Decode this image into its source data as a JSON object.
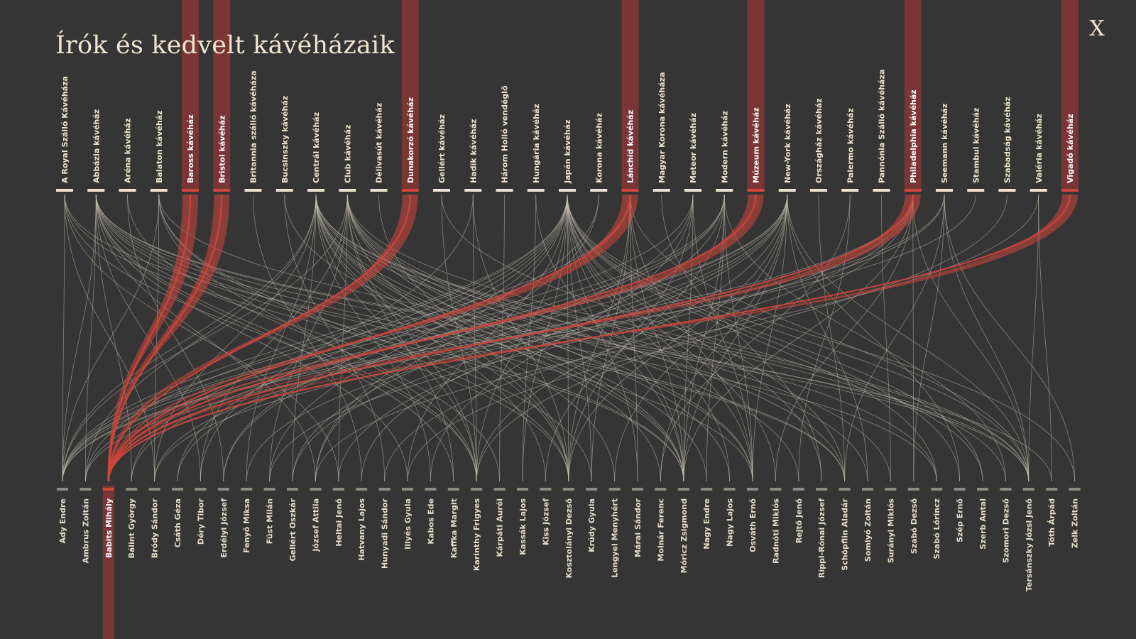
{
  "title": "Írók és kedvelt kávéházaik",
  "close_label": "X",
  "colors": {
    "background": "#353535",
    "text": "#efe4cf",
    "link": "#c9c2b3",
    "highlight": "#d2453b",
    "highlight_band": "#7a3535",
    "writer_marker": "#8f8b80"
  },
  "icons": {
    "close": "close-icon"
  },
  "selected_writer": "Babits Mihály",
  "cafes": [
    "A Royal Szálló Kávéháza",
    "Abbázia kávéház",
    "Aréna kávéház",
    "Balaton kávéház",
    "Baross kávéház",
    "Bristol kávéház",
    "Britannia szálló kávéháza",
    "Bucsinszky kávéház",
    "Centrál kávéház",
    "Club kávéház",
    "Délivasút kávéház",
    "Dunakorzó kávéház",
    "Gellért kávéház",
    "Hadik kávéház",
    "Három Holló vendéglő",
    "Hungária kávéház",
    "Japán kávéház",
    "Korona kávéház",
    "Lánchíd kávéház",
    "Magyar Korona kávéháza",
    "Meteor kávéház",
    "Modern kávéház",
    "Múzeum kávéház",
    "New-York kávéház",
    "Országház kávéház",
    "Palermo kávéház",
    "Pannónia Szálló kávéháza",
    "Philadelphia kávéház",
    "Seemann kávéház",
    "Stambul kávéház",
    "Szabadság kávéház",
    "Valéria kávéház",
    "Vigadó kávéház"
  ],
  "writers": [
    "Ady Endre",
    "Ambrus Zoltán",
    "Babits Mihály",
    "Bálint György",
    "Bródy Sándor",
    "Csáth Géza",
    "Déry Tibor",
    "Erdélyi József",
    "Fenyő Miksa",
    "Füst Milán",
    "Gellért Oszkár",
    "József Attila",
    "Heltai Jenő",
    "Hatvany Lajos",
    "Hunyadi Sándor",
    "Illyés Gyula",
    "Kabos Ede",
    "Kaffka Margit",
    "Karinthy Frigyes",
    "Kárpáti Aurél",
    "Kassák Lajos",
    "Kiss József",
    "Kosztolányi Dezső",
    "Krúdy Gyula",
    "Lengyel Menyhért",
    "Márai Sándor",
    "Molnár Ferenc",
    "Móricz Zsigmond",
    "Nagy Endre",
    "Nagy Lajos",
    "Osváth Ernő",
    "Radnóti Miklós",
    "Rejtő Jenő",
    "Rippl-Rónai József",
    "Schöpflin Aladár",
    "Somlyó Zoltán",
    "Surányi Miklós",
    "Szabó Dezső",
    "Szabó Lőrincz",
    "Szép Ernő",
    "Szerb Antal",
    "Szomori Dezső",
    "Tersánszky Józsi Jenő",
    "Tóth Árpád",
    "Zelk Zoltán"
  ],
  "links": [
    [
      "Ady Endre",
      "A Royal Szálló Kávéháza"
    ],
    [
      "Ady Endre",
      "Abbázia kávéház"
    ],
    [
      "Ady Endre",
      "Balaton kávéház"
    ],
    [
      "Ady Endre",
      "Centrál kávéház"
    ],
    [
      "Ady Endre",
      "Club kávéház"
    ],
    [
      "Ady Endre",
      "Japán kávéház"
    ],
    [
      "Ady Endre",
      "Lánchíd kávéház"
    ],
    [
      "Ady Endre",
      "Meteor kávéház"
    ],
    [
      "Ady Endre",
      "Modern kávéház"
    ],
    [
      "Ady Endre",
      "New-York kávéház"
    ],
    [
      "Ady Endre",
      "Philadelphia kávéház"
    ],
    [
      "Ady Endre",
      "Seemann kávéház"
    ],
    [
      "Ambrus Zoltán",
      "Abbázia kávéház"
    ],
    [
      "Ambrus Zoltán",
      "Centrál kávéház"
    ],
    [
      "Ambrus Zoltán",
      "New-York kávéház"
    ],
    [
      "Ambrus Zoltán",
      "Japán kávéház"
    ],
    [
      "Ambrus Zoltán",
      "Stambul kávéház"
    ],
    [
      "Babits Mihály",
      "Baross kávéház"
    ],
    [
      "Babits Mihály",
      "Bristol kávéház"
    ],
    [
      "Babits Mihály",
      "Dunakorzó kávéház"
    ],
    [
      "Babits Mihály",
      "Lánchíd kávéház"
    ],
    [
      "Babits Mihály",
      "Múzeum kávéház"
    ],
    [
      "Babits Mihály",
      "Philadelphia kávéház"
    ],
    [
      "Babits Mihály",
      "Vigadó kávéház"
    ],
    [
      "Bálint György",
      "Abbázia kávéház"
    ],
    [
      "Bálint György",
      "Japán kávéház"
    ],
    [
      "Bálint György",
      "Modern kávéház"
    ],
    [
      "Bródy Sándor",
      "A Royal Szálló Kávéháza"
    ],
    [
      "Bródy Sándor",
      "Balaton kávéház"
    ],
    [
      "Bródy Sándor",
      "Centrál kávéház"
    ],
    [
      "Bródy Sándor",
      "New-York kávéház"
    ],
    [
      "Bródy Sándor",
      "Seemann kávéház"
    ],
    [
      "Csáth Géza",
      "Japán kávéház"
    ],
    [
      "Csáth Géza",
      "Modern kávéház"
    ],
    [
      "Déry Tibor",
      "Abbázia kávéház"
    ],
    [
      "Déry Tibor",
      "Club kávéház"
    ],
    [
      "Déry Tibor",
      "Hadik kávéház"
    ],
    [
      "Erdélyi József",
      "Aréna kávéház"
    ],
    [
      "Erdélyi József",
      "Japán kávéház"
    ],
    [
      "Erdélyi József",
      "Korona kávéház"
    ],
    [
      "Fenyő Miksa",
      "Centrál kávéház"
    ],
    [
      "Fenyő Miksa",
      "New-York kávéház"
    ],
    [
      "Füst Milán",
      "Club kávéház"
    ],
    [
      "Füst Milán",
      "Japán kávéház"
    ],
    [
      "Füst Milán",
      "Philadelphia kávéház"
    ],
    [
      "Gellért Oszkár",
      "Centrál kávéház"
    ],
    [
      "Gellért Oszkár",
      "New-York kávéház"
    ],
    [
      "Gellért Oszkár",
      "Meteor kávéház"
    ],
    [
      "József Attila",
      "Abbázia kávéház"
    ],
    [
      "József Attila",
      "Japán kávéház"
    ],
    [
      "József Attila",
      "Korona kávéház"
    ],
    [
      "József Attila",
      "Valéria kávéház"
    ],
    [
      "Heltai Jenő",
      "A Royal Szálló Kávéháza"
    ],
    [
      "Heltai Jenő",
      "New-York kávéház"
    ],
    [
      "Heltai Jenő",
      "Club kávéház"
    ],
    [
      "Hatvany Lajos",
      "Britannia szálló kávéháza"
    ],
    [
      "Hatvany Lajos",
      "Modern kávéház"
    ],
    [
      "Hunyadi Sándor",
      "Bucsinszky kávéház"
    ],
    [
      "Hunyadi Sándor",
      "Philadelphia kávéház"
    ],
    [
      "Illyés Gyula",
      "Japán kávéház"
    ],
    [
      "Illyés Gyula",
      "Abbázia kávéház"
    ],
    [
      "Illyés Gyula",
      "Szabadság kávéház"
    ],
    [
      "Kabos Ede",
      "Centrál kávéház"
    ],
    [
      "Kabos Ede",
      "Meteor kávéház"
    ],
    [
      "Kaffka Margit",
      "Club kávéház"
    ],
    [
      "Kaffka Margit",
      "Abbázia kávéház"
    ],
    [
      "Karinthy Frigyes",
      "A Royal Szálló Kávéháza"
    ],
    [
      "Karinthy Frigyes",
      "Abbázia kávéház"
    ],
    [
      "Karinthy Frigyes",
      "Balaton kávéház"
    ],
    [
      "Karinthy Frigyes",
      "Centrál kávéház"
    ],
    [
      "Karinthy Frigyes",
      "Club kávéház"
    ],
    [
      "Karinthy Frigyes",
      "Gellért kávéház"
    ],
    [
      "Karinthy Frigyes",
      "Hadik kávéház"
    ],
    [
      "Karinthy Frigyes",
      "Japán kávéház"
    ],
    [
      "Karinthy Frigyes",
      "New-York kávéház"
    ],
    [
      "Karinthy Frigyes",
      "Philadelphia kávéház"
    ],
    [
      "Kárpáti Aurél",
      "Aréna kávéház"
    ],
    [
      "Kárpáti Aurél",
      "Három Holló vendéglő"
    ],
    [
      "Kassák Lajos",
      "Japán kávéház"
    ],
    [
      "Kassák Lajos",
      "Hungária kávéház"
    ],
    [
      "Kiss József",
      "Centrál kávéház"
    ],
    [
      "Kiss József",
      "Modern kávéház"
    ],
    [
      "Kosztolányi Dezső",
      "Abbázia kávéház"
    ],
    [
      "Kosztolányi Dezső",
      "Balaton kávéház"
    ],
    [
      "Kosztolányi Dezső",
      "Centrál kávéház"
    ],
    [
      "Kosztolányi Dezső",
      "Club kávéház"
    ],
    [
      "Kosztolányi Dezső",
      "Délivasút kávéház"
    ],
    [
      "Kosztolányi Dezső",
      "Hadik kávéház"
    ],
    [
      "Kosztolányi Dezső",
      "Japán kávéház"
    ],
    [
      "Kosztolányi Dezső",
      "Lánchíd kávéház"
    ],
    [
      "Kosztolányi Dezső",
      "Meteor kávéház"
    ],
    [
      "Kosztolányi Dezső",
      "New-York kávéház"
    ],
    [
      "Krúdy Gyula",
      "Balaton kávéház"
    ],
    [
      "Krúdy Gyula",
      "Japán kávéház"
    ],
    [
      "Krúdy Gyula",
      "Lánchíd kávéház"
    ],
    [
      "Lengyel Menyhért",
      "Centrál kávéház"
    ],
    [
      "Lengyel Menyhért",
      "New-York kávéház"
    ],
    [
      "Márai Sándor",
      "Lánchíd kávéház"
    ],
    [
      "Márai Sándor",
      "Japán kávéház"
    ],
    [
      "Molnár Ferenc",
      "Centrál kávéház"
    ],
    [
      "Molnár Ferenc",
      "New-York kávéház"
    ],
    [
      "Molnár Ferenc",
      "Palermo kávéház"
    ],
    [
      "Móricz Zsigmond",
      "A Royal Szálló Kávéháza"
    ],
    [
      "Móricz Zsigmond",
      "Abbázia kávéház"
    ],
    [
      "Móricz Zsigmond",
      "Bucsinszky kávéház"
    ],
    [
      "Móricz Zsigmond",
      "Centrál kávéház"
    ],
    [
      "Móricz Zsigmond",
      "Club kávéház"
    ],
    [
      "Móricz Zsigmond",
      "Hungária kávéház"
    ],
    [
      "Móricz Zsigmond",
      "Japán kávéház"
    ],
    [
      "Móricz Zsigmond",
      "Lánchíd kávéház"
    ],
    [
      "Móricz Zsigmond",
      "Meteor kávéház"
    ],
    [
      "Móricz Zsigmond",
      "Modern kávéház"
    ],
    [
      "Móricz Zsigmond",
      "New-York kávéház"
    ],
    [
      "Móricz Zsigmond",
      "Philadelphia kávéház"
    ],
    [
      "Nagy Endre",
      "Modern kávéház"
    ],
    [
      "Nagy Endre",
      "Centrál kávéház"
    ],
    [
      "Nagy Lajos",
      "Japán kávéház"
    ],
    [
      "Nagy Lajos",
      "Club kávéház"
    ],
    [
      "Osváth Ernő",
      "Abbázia kávéház"
    ],
    [
      "Osváth Ernő",
      "Centrál kávéház"
    ],
    [
      "Osváth Ernő",
      "Club kávéház"
    ],
    [
      "Osváth Ernő",
      "Japán kávéház"
    ],
    [
      "Osváth Ernő",
      "Lánchíd kávéház"
    ],
    [
      "Osváth Ernő",
      "Meteor kávéház"
    ],
    [
      "Osváth Ernő",
      "Modern kávéház"
    ],
    [
      "Osváth Ernő",
      "New-York kávéház"
    ],
    [
      "Radnóti Miklós",
      "Japán kávéház"
    ],
    [
      "Radnóti Miklós",
      "Philadelphia kávéház"
    ],
    [
      "Rejtő Jenő",
      "Club kávéház"
    ],
    [
      "Rejtő Jenő",
      "Palermo kávéház"
    ],
    [
      "Rippl-Rónai József",
      "Japán kávéház"
    ],
    [
      "Rippl-Rónai József",
      "Magyar Korona kávéháza"
    ],
    [
      "Schöpflin Aladár",
      "A Royal Szálló Kávéháza"
    ],
    [
      "Schöpflin Aladár",
      "Abbázia kávéház"
    ],
    [
      "Schöpflin Aladár",
      "Club kávéház"
    ],
    [
      "Schöpflin Aladár",
      "Japán kávéház"
    ],
    [
      "Schöpflin Aladár",
      "Országház kávéház"
    ],
    [
      "Schöpflin Aladár",
      "Seemann kávéház"
    ],
    [
      "Somlyó Zoltán",
      "Centrál kávéház"
    ],
    [
      "Somlyó Zoltán",
      "New-York kávéház"
    ],
    [
      "Surányi Miklós",
      "Pannónia Szálló kávéháza"
    ],
    [
      "Surányi Miklós",
      "Club kávéház"
    ],
    [
      "Szabó Dezső",
      "Philadelphia kávéház"
    ],
    [
      "Szabó Dezső",
      "Seemann kávéház"
    ],
    [
      "Szabó Lőrincz",
      "Abbázia kávéház"
    ],
    [
      "Szabó Lőrincz",
      "Centrál kávéház"
    ],
    [
      "Szabó Lőrincz",
      "Japán kávéház"
    ],
    [
      "Szép Ernő",
      "Japán kávéház"
    ],
    [
      "Szép Ernő",
      "New-York kávéház"
    ],
    [
      "Szerb Antal",
      "Gellért kávéház"
    ],
    [
      "Szerb Antal",
      "Japán kávéház"
    ],
    [
      "Szomori Dezső",
      "Modern kávéház"
    ],
    [
      "Szomori Dezső",
      "Centrál kávéház"
    ],
    [
      "Tersánszky Józsi Jenő",
      "Abbázia kávéház"
    ],
    [
      "Tersánszky Józsi Jenő",
      "Balaton kávéház"
    ],
    [
      "Tersánszky Józsi Jenő",
      "Centrál kávéház"
    ],
    [
      "Tersánszky Józsi Jenő",
      "Club kávéház"
    ],
    [
      "Tersánszky Józsi Jenő",
      "Japán kávéház"
    ],
    [
      "Tersánszky Józsi Jenő",
      "Lánchíd kávéház"
    ],
    [
      "Tersánszky Józsi Jenő",
      "New-York kávéház"
    ],
    [
      "Tersánszky Józsi Jenő",
      "Philadelphia kávéház"
    ],
    [
      "Tersánszky Józsi Jenő",
      "Seemann kávéház"
    ],
    [
      "Tersánszky Józsi Jenő",
      "Valéria kávéház"
    ],
    [
      "Tóth Árpád",
      "Abbázia kávéház"
    ],
    [
      "Tóth Árpád",
      "Valéria kávéház"
    ],
    [
      "Zelk Zoltán",
      "Japán kávéház"
    ],
    [
      "Zelk Zoltán",
      "Seemann kávéház"
    ]
  ]
}
